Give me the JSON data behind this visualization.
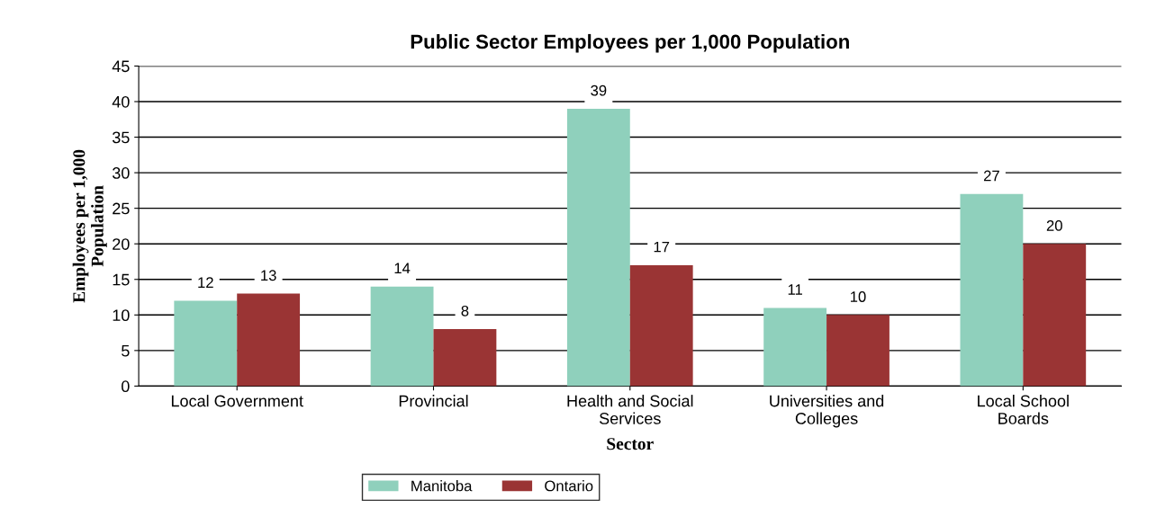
{
  "chart_data": {
    "type": "bar",
    "title": "Public Sector Employees per 1,000 Population",
    "xlabel": "Sector",
    "ylabel": "Employees per 1,000\nPopulation",
    "categories": [
      "Local Government",
      "Provincial",
      "Health and Social\nServices",
      "Universities and\nColleges",
      "Local School\nBoards"
    ],
    "series": [
      {
        "name": "Manitoba",
        "color": "#8fd0bc",
        "values": [
          12,
          14,
          39,
          11,
          27
        ]
      },
      {
        "name": "Ontario",
        "color": "#9a3434",
        "values": [
          13,
          8,
          17,
          10,
          20
        ]
      }
    ],
    "ylim": [
      0,
      45
    ],
    "yticks": [
      0,
      5,
      10,
      15,
      20,
      25,
      30,
      35,
      40,
      45
    ],
    "grid": "y",
    "legend": "bottom left",
    "data_labels": true
  }
}
